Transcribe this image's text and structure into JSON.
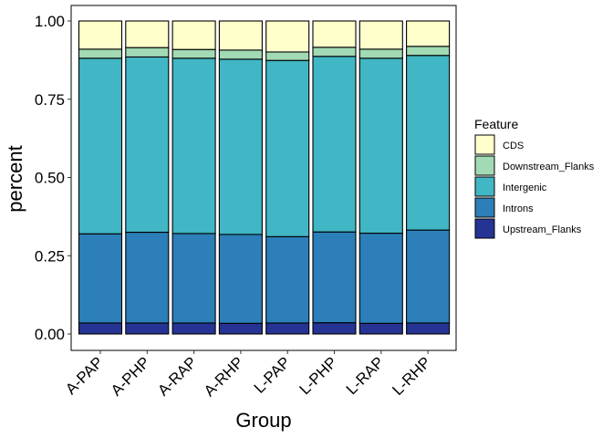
{
  "chart_data": {
    "type": "bar",
    "stacked": true,
    "normalized": true,
    "xlabel": "Group",
    "ylabel": "percent",
    "ylim": [
      0,
      1
    ],
    "yticks": [
      0,
      0.25,
      0.5,
      0.75,
      1
    ],
    "ytick_labels": [
      "0.00",
      "0.25",
      "0.50",
      "0.75",
      "1.00"
    ],
    "grid": false,
    "legend_position": "right",
    "legend_title": "Feature",
    "categories": [
      "A-PAP",
      "A-PHP",
      "A-RAP",
      "A-RHP",
      "L-PAP",
      "L-PHP",
      "L-RAP",
      "L-RHP"
    ],
    "series": [
      {
        "name": "Upstream_Flanks",
        "color": "#253494",
        "values": [
          0.035,
          0.035,
          0.035,
          0.034,
          0.035,
          0.036,
          0.034,
          0.035
        ]
      },
      {
        "name": "Introns",
        "color": "#2c7fb8",
        "values": [
          0.285,
          0.29,
          0.286,
          0.284,
          0.276,
          0.29,
          0.288,
          0.297
        ]
      },
      {
        "name": "Intergenic",
        "color": "#41b6c4",
        "values": [
          0.561,
          0.56,
          0.56,
          0.56,
          0.563,
          0.561,
          0.559,
          0.558
        ]
      },
      {
        "name": "Downstream_Flanks",
        "color": "#a1dab4",
        "values": [
          0.029,
          0.03,
          0.028,
          0.029,
          0.027,
          0.029,
          0.029,
          0.029
        ]
      },
      {
        "name": "CDS",
        "color": "#ffffcc",
        "values": [
          0.09,
          0.085,
          0.091,
          0.093,
          0.099,
          0.084,
          0.09,
          0.081
        ]
      }
    ],
    "legend_order": [
      "CDS",
      "Downstream_Flanks",
      "Intergenic",
      "Introns",
      "Upstream_Flanks"
    ]
  }
}
